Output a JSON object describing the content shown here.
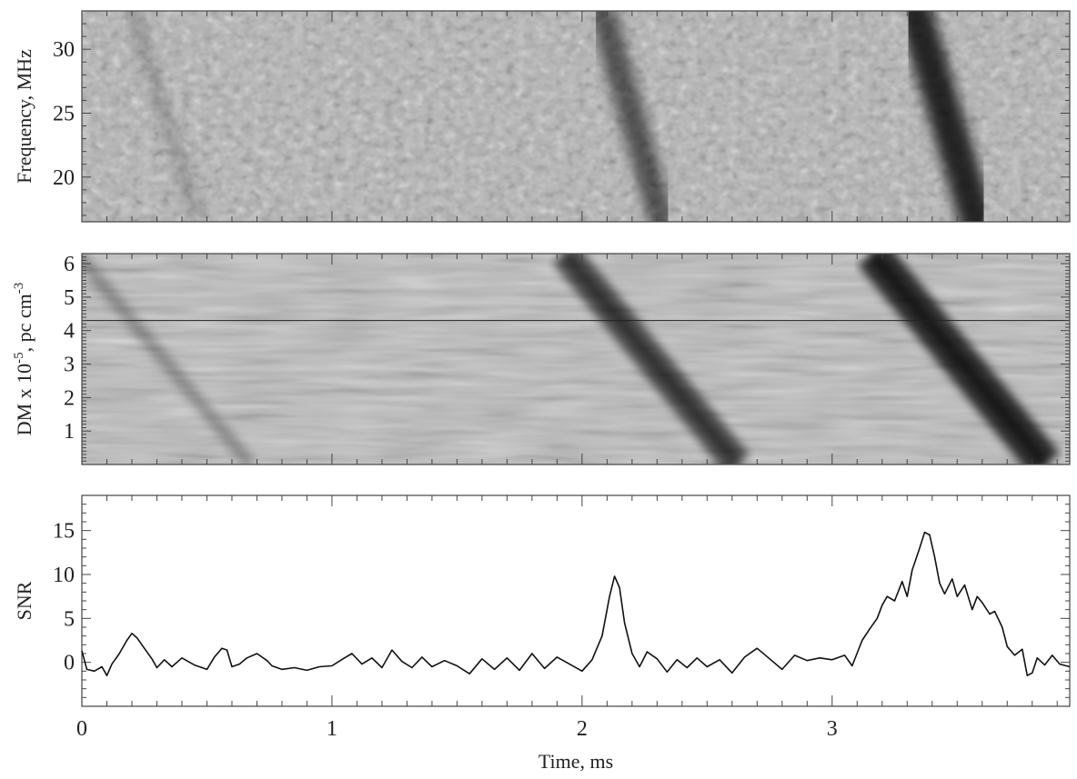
{
  "chart_data": [
    {
      "type": "heatmap",
      "panel": "dynamic-spectrum",
      "ylabel": "Frequency, MHz",
      "yticks": [
        20,
        25,
        30
      ],
      "ylim": [
        16.5,
        33
      ],
      "xlim": [
        0,
        3.95
      ],
      "colormap": "gray-inverted",
      "features": [
        {
          "t_at_top": 0.2,
          "t_at_bottom": 0.47,
          "intensity": 0.18
        },
        {
          "t_at_top": 2.08,
          "t_at_bottom": 2.32,
          "intensity": 0.55
        },
        {
          "t_at_top": 3.33,
          "t_at_bottom": 3.58,
          "intensity": 0.8
        }
      ]
    },
    {
      "type": "heatmap",
      "panel": "dm-time",
      "ylabel": "DM x 10",
      "ylabel_sup": "-5",
      "ylabel_tail": ", pc cm",
      "ylabel_tail_sup": "-3",
      "yticks": [
        1,
        2,
        3,
        4,
        5,
        6
      ],
      "ylim": [
        0,
        6.3
      ],
      "xlim": [
        0,
        3.95
      ],
      "selected_dm": 4.3,
      "colormap": "gray-inverted",
      "features": [
        {
          "t_at_dm": 0.2,
          "intensity": 0.25
        },
        {
          "t_at_dm": 2.15,
          "intensity": 0.75
        },
        {
          "t_at_dm": 3.38,
          "intensity": 0.95
        }
      ]
    },
    {
      "type": "line",
      "panel": "snr-profile",
      "ylabel": "SNR",
      "xlabel": "Time, ms",
      "xticks": [
        0,
        1,
        2,
        3
      ],
      "yticks": [
        0,
        5,
        10,
        15
      ],
      "xlim": [
        0,
        3.95
      ],
      "ylim": [
        -5,
        19
      ],
      "series": [
        {
          "x": [
            0.0,
            0.02,
            0.05,
            0.08,
            0.1,
            0.12,
            0.15,
            0.18,
            0.2,
            0.22,
            0.25,
            0.28,
            0.3,
            0.33,
            0.36,
            0.4,
            0.45,
            0.5,
            0.53,
            0.56,
            0.58,
            0.6,
            0.63,
            0.66,
            0.7,
            0.74,
            0.76,
            0.8,
            0.85,
            0.9,
            0.95,
            1.0,
            1.05,
            1.08,
            1.12,
            1.16,
            1.2,
            1.24,
            1.28,
            1.32,
            1.36,
            1.4,
            1.45,
            1.5,
            1.55,
            1.6,
            1.65,
            1.7,
            1.75,
            1.8,
            1.85,
            1.9,
            1.95,
            2.0,
            2.04,
            2.08,
            2.11,
            2.13,
            2.15,
            2.17,
            2.2,
            2.23,
            2.26,
            2.3,
            2.34,
            2.38,
            2.42,
            2.46,
            2.5,
            2.55,
            2.6,
            2.65,
            2.7,
            2.75,
            2.8,
            2.85,
            2.9,
            2.95,
            3.0,
            3.05,
            3.08,
            3.12,
            3.15,
            3.18,
            3.2,
            3.22,
            3.25,
            3.28,
            3.3,
            3.32,
            3.35,
            3.37,
            3.39,
            3.41,
            3.43,
            3.45,
            3.48,
            3.5,
            3.53,
            3.56,
            3.58,
            3.6,
            3.63,
            3.65,
            3.68,
            3.7,
            3.73,
            3.76,
            3.78,
            3.8,
            3.82,
            3.85,
            3.88,
            3.91,
            3.95
          ],
          "y": [
            1.3,
            -0.8,
            -1.0,
            -0.5,
            -1.5,
            -0.2,
            1.0,
            2.5,
            3.3,
            2.8,
            1.6,
            0.4,
            -0.6,
            0.3,
            -0.5,
            0.5,
            -0.3,
            -0.8,
            0.6,
            1.6,
            1.4,
            -0.5,
            -0.2,
            0.5,
            1.0,
            0.2,
            -0.4,
            -0.8,
            -0.6,
            -0.9,
            -0.5,
            -0.4,
            0.5,
            1.0,
            -0.2,
            0.5,
            -0.6,
            1.4,
            0.1,
            -0.6,
            0.6,
            -0.5,
            0.2,
            -0.4,
            -1.3,
            0.4,
            -0.8,
            0.5,
            -0.9,
            1.0,
            -0.7,
            0.6,
            -0.2,
            -1.0,
            0.3,
            3.0,
            7.5,
            9.8,
            8.5,
            4.5,
            1.0,
            -0.5,
            1.2,
            0.4,
            -1.1,
            0.3,
            -0.6,
            0.5,
            -0.5,
            0.3,
            -1.2,
            0.6,
            1.6,
            0.4,
            -0.8,
            0.8,
            0.2,
            0.5,
            0.3,
            0.8,
            -0.4,
            2.5,
            3.8,
            5.0,
            6.5,
            7.5,
            7.0,
            9.2,
            7.5,
            10.5,
            13.0,
            14.8,
            14.5,
            12.0,
            9.0,
            7.8,
            9.5,
            7.5,
            8.8,
            6.0,
            7.5,
            6.8,
            5.5,
            5.8,
            4.0,
            1.8,
            0.8,
            1.5,
            -1.5,
            -1.2,
            0.5,
            -0.3,
            0.8,
            -0.2,
            -0.5
          ]
        }
      ]
    }
  ]
}
